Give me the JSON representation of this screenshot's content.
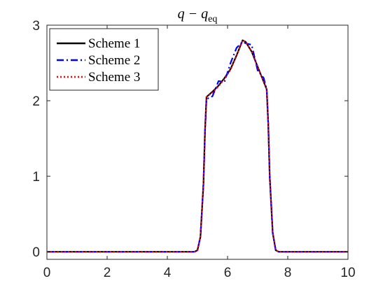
{
  "chart_data": {
    "type": "line",
    "title": "q − q_eq",
    "title_parts": {
      "main": "q − q",
      "subscript": "eq"
    },
    "xlabel": "",
    "ylabel": "",
    "xlim": [
      0,
      10
    ],
    "ylim": [
      -0.1,
      3
    ],
    "xticks": [
      0,
      2,
      4,
      6,
      8,
      10
    ],
    "yticks": [
      0,
      1,
      2,
      3
    ],
    "grid": false,
    "legend_position": "top-left",
    "series": [
      {
        "name": "Scheme 1",
        "color": "#000000",
        "style": "solid",
        "x": [
          0,
          4.9,
          5.0,
          5.1,
          5.2,
          5.25,
          5.3,
          5.5,
          5.7,
          5.9,
          6.1,
          6.3,
          6.5,
          6.6,
          6.8,
          7.0,
          7.2,
          7.3,
          7.35,
          7.4,
          7.5,
          7.6,
          7.7,
          10
        ],
        "y": [
          0,
          0,
          0.02,
          0.2,
          0.9,
          1.6,
          2.05,
          2.12,
          2.2,
          2.3,
          2.42,
          2.6,
          2.8,
          2.78,
          2.65,
          2.45,
          2.25,
          2.15,
          1.7,
          1.0,
          0.25,
          0.02,
          0,
          0
        ]
      },
      {
        "name": "Scheme 2",
        "color": "#0000ff",
        "style": "dashdot",
        "x": [
          0,
          4.9,
          5.0,
          5.1,
          5.2,
          5.25,
          5.3,
          5.5,
          5.7,
          5.9,
          6.1,
          6.3,
          6.5,
          6.6,
          6.8,
          7.0,
          7.2,
          7.3,
          7.35,
          7.4,
          7.5,
          7.6,
          7.7,
          10
        ],
        "y": [
          0,
          0,
          0.02,
          0.2,
          0.9,
          1.6,
          2.02,
          2.06,
          2.26,
          2.25,
          2.5,
          2.7,
          2.78,
          2.76,
          2.74,
          2.4,
          2.3,
          2.15,
          1.7,
          1.0,
          0.25,
          0.02,
          0,
          0
        ]
      },
      {
        "name": "Scheme 3",
        "color": "#ff0000",
        "style": "dotted",
        "x": [
          0,
          4.9,
          5.0,
          5.1,
          5.2,
          5.25,
          5.3,
          5.5,
          5.7,
          5.9,
          6.1,
          6.3,
          6.5,
          6.6,
          6.8,
          7.0,
          7.2,
          7.3,
          7.35,
          7.4,
          7.5,
          7.6,
          7.7,
          10
        ],
        "y": [
          0,
          0,
          0.02,
          0.2,
          0.9,
          1.6,
          2.05,
          2.11,
          2.19,
          2.29,
          2.41,
          2.6,
          2.8,
          2.78,
          2.65,
          2.45,
          2.25,
          2.15,
          1.7,
          1.0,
          0.25,
          0.02,
          0,
          0
        ]
      }
    ]
  }
}
